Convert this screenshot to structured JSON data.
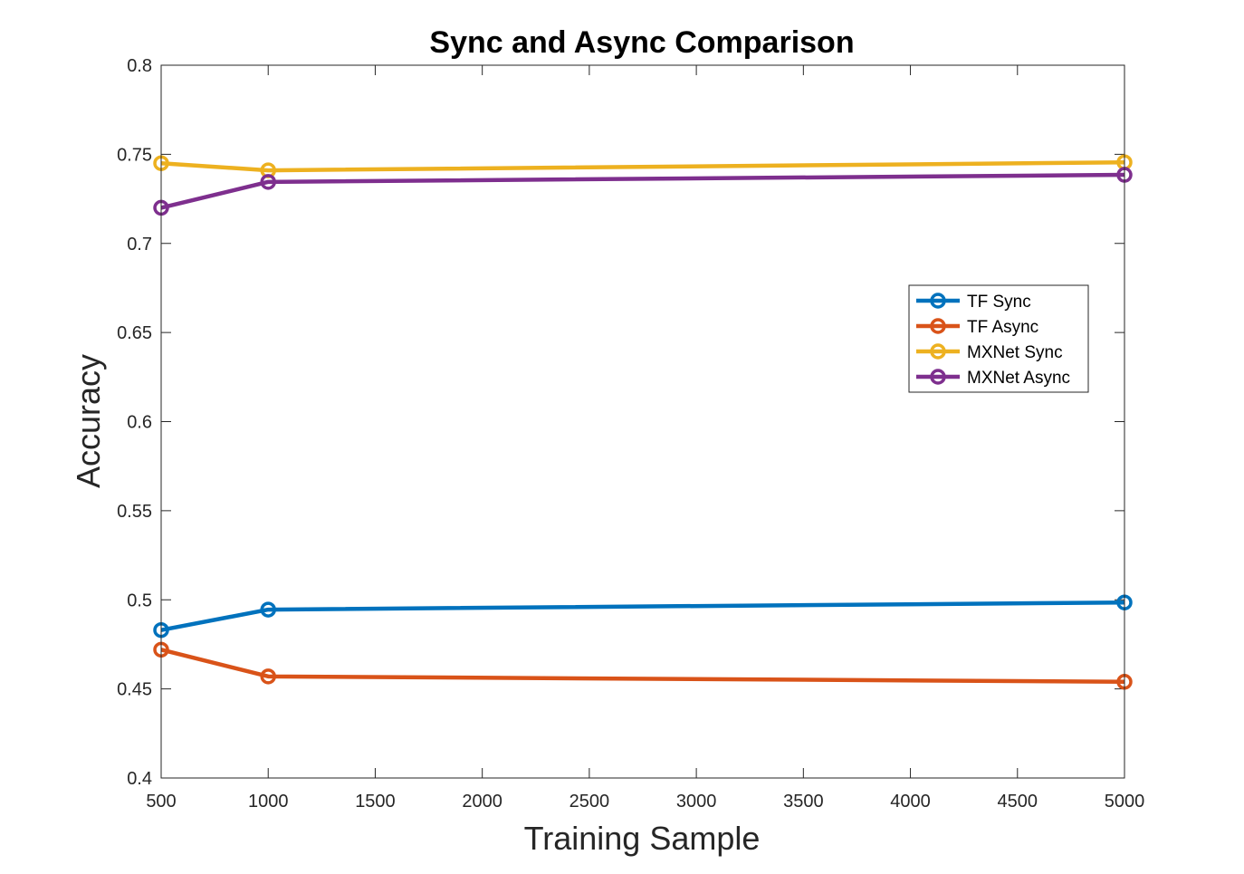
{
  "chart_data": {
    "type": "line",
    "title": "Sync and Async Comparison",
    "xlabel": "Training Sample",
    "ylabel": "Accuracy",
    "xlim": [
      500,
      5000
    ],
    "ylim": [
      0.4,
      0.8
    ],
    "xticks": [
      500,
      1000,
      1500,
      2000,
      2500,
      3000,
      3500,
      4000,
      4500,
      5000
    ],
    "xtick_labels": [
      "500",
      "1000",
      "1500",
      "2000",
      "2500",
      "3000",
      "3500",
      "4000",
      "4500",
      "5000"
    ],
    "yticks": [
      0.4,
      0.45,
      0.5,
      0.55,
      0.6,
      0.65,
      0.7,
      0.75,
      0.8
    ],
    "ytick_labels": [
      "0.4",
      "0.45",
      "0.5",
      "0.55",
      "0.6",
      "0.65",
      "0.7",
      "0.75",
      "0.8"
    ],
    "grid": false,
    "legend_position": "right",
    "x": [
      500,
      1000,
      5000
    ],
    "series": [
      {
        "name": "TF Sync",
        "color": "#0072BD",
        "values": [
          0.483,
          0.4945,
          0.4985
        ]
      },
      {
        "name": "TF Async",
        "color": "#D95319",
        "values": [
          0.472,
          0.457,
          0.454
        ]
      },
      {
        "name": "MXNet Sync",
        "color": "#EDB120",
        "values": [
          0.745,
          0.741,
          0.7455
        ]
      },
      {
        "name": "MXNet Async",
        "color": "#7E2F8E",
        "values": [
          0.72,
          0.7345,
          0.7385
        ]
      }
    ]
  }
}
